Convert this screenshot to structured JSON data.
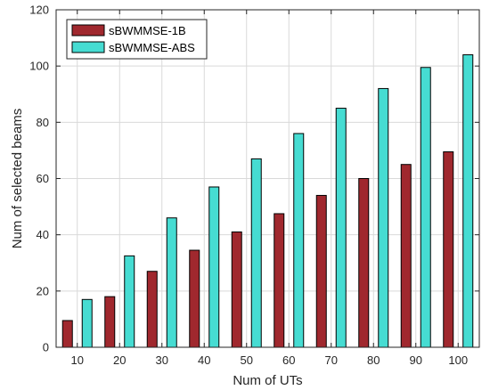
{
  "chart_data": {
    "type": "bar",
    "categories": [
      "10",
      "20",
      "30",
      "40",
      "50",
      "60",
      "70",
      "80",
      "90",
      "100"
    ],
    "series": [
      {
        "name": "sBWMMSE-1B",
        "color": "#a0282e",
        "values": [
          9.5,
          18,
          27,
          34.5,
          41,
          47.5,
          54,
          60,
          65,
          69.5
        ]
      },
      {
        "name": "sBWMMSE-ABS",
        "color": "#46dcd2",
        "values": [
          17,
          32.5,
          46,
          57,
          67,
          76,
          85,
          92,
          99.5,
          104
        ]
      }
    ],
    "title": "",
    "xlabel": "Num of UTs",
    "ylabel": "Num of selected beams",
    "ylim": [
      0,
      120
    ],
    "yticks": [
      0,
      20,
      40,
      60,
      80,
      100,
      120
    ],
    "grid": true,
    "legend_position": "top-left"
  }
}
